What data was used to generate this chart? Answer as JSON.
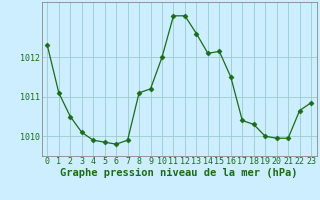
{
  "x": [
    0,
    1,
    2,
    3,
    4,
    5,
    6,
    7,
    8,
    9,
    10,
    11,
    12,
    13,
    14,
    15,
    16,
    17,
    18,
    19,
    20,
    21,
    22,
    23
  ],
  "y": [
    1012.3,
    1011.1,
    1010.5,
    1010.1,
    1009.9,
    1009.85,
    1009.8,
    1009.9,
    1011.1,
    1011.2,
    1012.0,
    1013.05,
    1013.05,
    1012.6,
    1012.1,
    1012.15,
    1011.5,
    1010.4,
    1010.3,
    1010.0,
    1009.95,
    1009.95,
    1010.65,
    1010.85
  ],
  "line_color": "#1a6b1a",
  "marker": "D",
  "marker_size": 2.5,
  "bg_color": "#cceeff",
  "grid_color": "#99cccc",
  "ylabel_ticks": [
    1010,
    1011,
    1012
  ],
  "xtick_labels": [
    "0",
    "1",
    "2",
    "3",
    "4",
    "5",
    "6",
    "7",
    "8",
    "9",
    "10",
    "11",
    "12",
    "13",
    "14",
    "15",
    "16",
    "17",
    "18",
    "19",
    "20",
    "21",
    "22",
    "23"
  ],
  "xlabel": "Graphe pression niveau de la mer (hPa)",
  "ylim": [
    1009.5,
    1013.4
  ],
  "xlim": [
    -0.5,
    23.5
  ],
  "tick_fontsize": 6,
  "label_fontsize": 7.5
}
